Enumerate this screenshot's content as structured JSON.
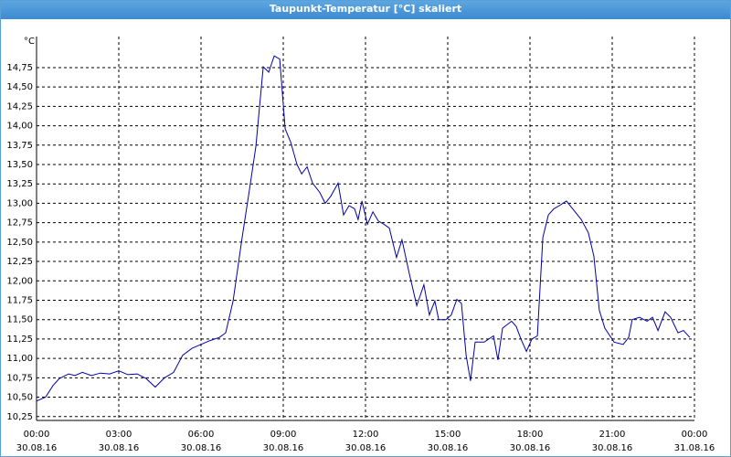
{
  "chart_data": {
    "type": "line",
    "title": "Taupunkt-Temperatur [°C] skaliert",
    "y_label": "°C",
    "xlim": [
      0,
      24
    ],
    "xticks": [
      {
        "value": 0,
        "label": "00:00",
        "date": "30.08.16"
      },
      {
        "value": 3,
        "label": "03:00",
        "date": "30.08.16"
      },
      {
        "value": 6,
        "label": "06:00",
        "date": "30.08.16"
      },
      {
        "value": 9,
        "label": "09:00",
        "date": "30.08.16"
      },
      {
        "value": 12,
        "label": "12:00",
        "date": "30.08.16"
      },
      {
        "value": 15,
        "label": "15:00",
        "date": "30.08.16"
      },
      {
        "value": 18,
        "label": "18:00",
        "date": "30.08.16"
      },
      {
        "value": 21,
        "label": "21:00",
        "date": "30.08.16"
      },
      {
        "value": 24,
        "label": "00:00",
        "date": "31.08.16"
      }
    ],
    "ylim": [
      10.2,
      15.15
    ],
    "yticks": [
      {
        "value": 10.25,
        "label": "10,25"
      },
      {
        "value": 10.5,
        "label": "10,50"
      },
      {
        "value": 10.75,
        "label": "10,75"
      },
      {
        "value": 11,
        "label": "11,00"
      },
      {
        "value": 11.25,
        "label": "11,25"
      },
      {
        "value": 11.5,
        "label": "11,50"
      },
      {
        "value": 11.75,
        "label": "11,75"
      },
      {
        "value": 12,
        "label": "12,00"
      },
      {
        "value": 12.25,
        "label": "12,25"
      },
      {
        "value": 12.5,
        "label": "12,50"
      },
      {
        "value": 12.75,
        "label": "12,75"
      },
      {
        "value": 13,
        "label": "13,00"
      },
      {
        "value": 13.25,
        "label": "13,25"
      },
      {
        "value": 13.5,
        "label": "13,50"
      },
      {
        "value": 13.75,
        "label": "13,75"
      },
      {
        "value": 14,
        "label": "14,00"
      },
      {
        "value": 14.25,
        "label": "14,25"
      },
      {
        "value": 14.5,
        "label": "14,50"
      },
      {
        "value": 14.75,
        "label": "14,75"
      }
    ],
    "grid": true,
    "x": [
      0,
      0.33,
      0.6,
      0.83,
      1.17,
      1.4,
      1.67,
      2.0,
      2.33,
      2.67,
      3.0,
      3.33,
      3.67,
      4.0,
      4.33,
      4.67,
      5.0,
      5.33,
      5.67,
      6.0,
      6.33,
      6.67,
      6.9,
      7.17,
      7.5,
      7.73,
      8.0,
      8.27,
      8.47,
      8.67,
      8.87,
      9.07,
      9.27,
      9.5,
      9.67,
      9.87,
      10.07,
      10.33,
      10.53,
      10.73,
      11.0,
      11.2,
      11.4,
      11.6,
      11.73,
      11.87,
      12.07,
      12.27,
      12.47,
      12.67,
      12.87,
      13.13,
      13.33,
      13.6,
      13.87,
      14.13,
      14.33,
      14.53,
      14.67,
      14.93,
      15.13,
      15.33,
      15.5,
      15.67,
      15.83,
      16.0,
      16.33,
      16.67,
      16.83,
      17.0,
      17.33,
      17.5,
      17.67,
      17.87,
      18.07,
      18.27,
      18.47,
      18.67,
      18.87,
      19.07,
      19.33,
      19.6,
      19.87,
      20.13,
      20.33,
      20.53,
      20.73,
      21.07,
      21.4,
      21.6,
      21.73,
      22.0,
      22.27,
      22.47,
      22.67,
      22.93,
      23.13,
      23.4,
      23.6,
      23.83
    ],
    "series": [
      {
        "name": "Taupunkt-Temperatur",
        "color": "#0000a8",
        "values": [
          10.45,
          10.5,
          10.65,
          10.74,
          10.8,
          10.78,
          10.82,
          10.78,
          10.81,
          10.8,
          10.84,
          10.79,
          10.8,
          10.74,
          10.63,
          10.75,
          10.82,
          11.04,
          11.13,
          11.18,
          11.23,
          11.27,
          11.33,
          11.74,
          12.56,
          13.09,
          13.73,
          14.76,
          14.69,
          14.9,
          14.86,
          13.96,
          13.79,
          13.5,
          13.38,
          13.47,
          13.26,
          13.14,
          13.0,
          13.09,
          13.26,
          12.85,
          12.97,
          12.93,
          12.79,
          13.03,
          12.73,
          12.89,
          12.77,
          12.73,
          12.68,
          12.3,
          12.53,
          12.09,
          11.68,
          11.95,
          11.56,
          11.74,
          11.5,
          11.5,
          11.56,
          11.76,
          11.71,
          11.04,
          10.71,
          11.21,
          11.21,
          11.29,
          10.98,
          11.39,
          11.48,
          11.41,
          11.25,
          11.09,
          11.25,
          11.29,
          12.56,
          12.85,
          12.93,
          12.97,
          13.03,
          12.91,
          12.79,
          12.62,
          12.32,
          11.62,
          11.39,
          11.21,
          11.18,
          11.27,
          11.5,
          11.53,
          11.48,
          11.53,
          11.36,
          11.6,
          11.53,
          11.33,
          11.36,
          11.27
        ]
      }
    ]
  }
}
